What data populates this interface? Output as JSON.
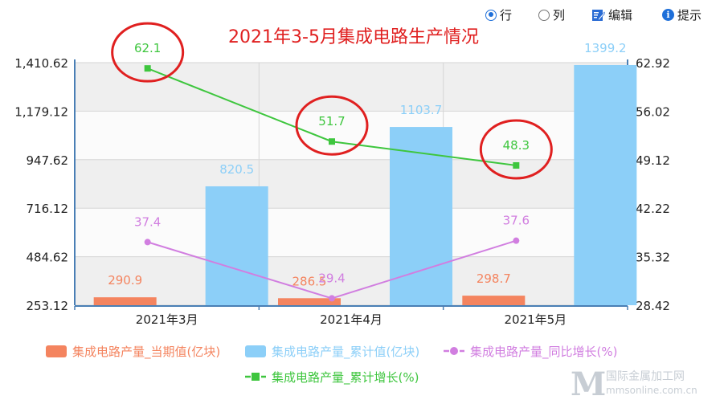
{
  "toolbar": {
    "row_label": "行",
    "column_label": "列",
    "edit_label": "编辑",
    "hint_label": "提示"
  },
  "chart_data": {
    "type": "bar",
    "title": "2021年3-5月集成电路生产情况",
    "categories": [
      "2021年3月",
      "2021年4月",
      "2021年5月"
    ],
    "y_left": {
      "ylim": [
        253.12,
        1410.62
      ],
      "ticks": [
        "253.12",
        "484.62",
        "716.12",
        "947.62",
        "1,179.12",
        "1,410.62"
      ]
    },
    "y_right": {
      "ylim": [
        28.42,
        62.92
      ],
      "ticks": [
        "28.42",
        "35.32",
        "42.22",
        "49.12",
        "56.02",
        "62.92"
      ]
    },
    "series": [
      {
        "name": "集成电路产量_当期值(亿块)",
        "type": "bar",
        "axis": "left",
        "color": "#f4845f",
        "values": [
          290.9,
          286.5,
          298.7
        ],
        "labels": [
          "290.9",
          "286.5",
          "298.7"
        ]
      },
      {
        "name": "集成电路产量_累计值(亿块)",
        "type": "bar",
        "axis": "left",
        "color": "#8ccff8",
        "values": [
          820.5,
          1103.7,
          1399.2
        ],
        "labels": [
          "820.5",
          "1103.7",
          "1399.2"
        ]
      },
      {
        "name": "集成电路产量_同比增长(%)",
        "type": "line",
        "axis": "right",
        "marker": "circle",
        "color": "#d17ee0",
        "values": [
          37.4,
          29.4,
          37.6
        ],
        "labels": [
          "37.4",
          "29.4",
          "37.6"
        ]
      },
      {
        "name": "集成电路产量_累计增长(%)",
        "type": "line",
        "axis": "right",
        "marker": "square",
        "color": "#3ec63e",
        "values": [
          62.1,
          51.7,
          48.3
        ],
        "labels": [
          "62.1",
          "51.7",
          "48.3"
        ]
      }
    ],
    "legend_position": "bottom",
    "grid": true,
    "annotation_color": "#e02020"
  },
  "watermark": {
    "text": "国际金属加工网",
    "url_text": "mmsonline.com.cn",
    "logo_letter": "M"
  }
}
